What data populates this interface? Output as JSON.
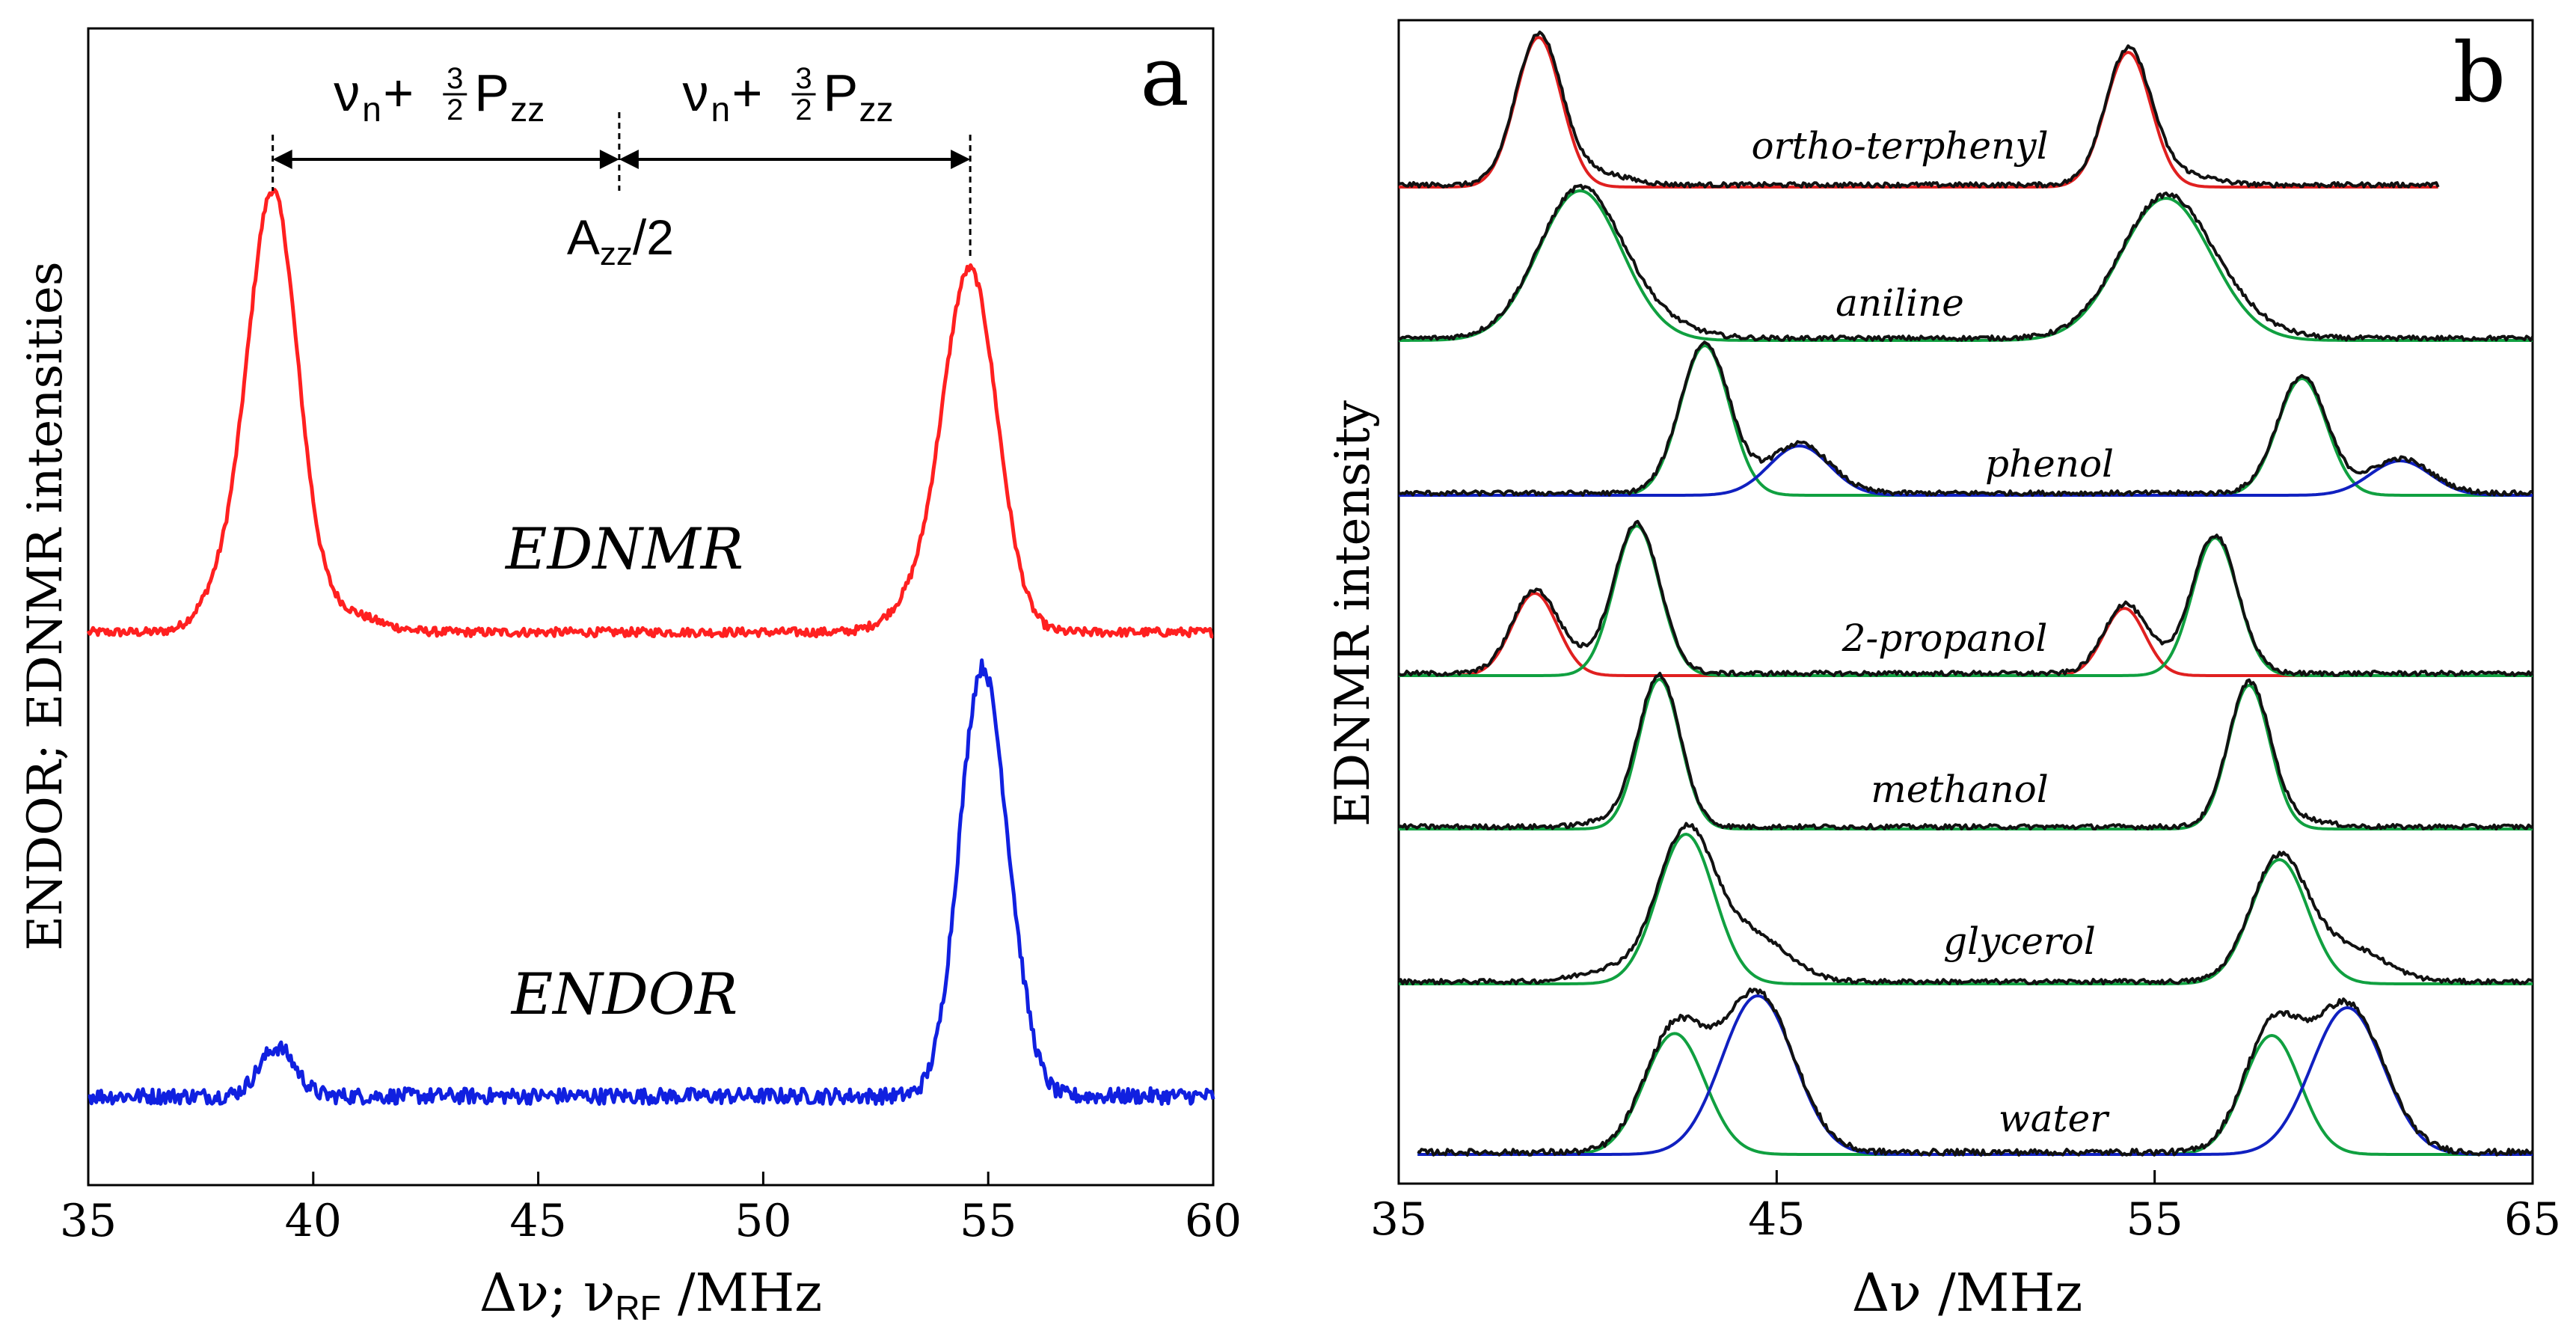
{
  "chart_data": [
    {
      "type": "line",
      "panel_label": "a",
      "xlabel_parts": [
        "Δν; ν",
        "RF",
        " /MHz"
      ],
      "ylabel": "ENDOR; EDNMR intensities",
      "xlim": [
        35,
        60
      ],
      "xticks": [
        "35",
        "40",
        "45",
        "50",
        "55",
        "60"
      ],
      "annotations": {
        "left_arrow_parts": [
          "ν",
          "n",
          "+ ",
          "3",
          "2",
          "P",
          "zz"
        ],
        "right_arrow_parts": [
          "ν",
          "n",
          "+ ",
          "3",
          "2",
          "P",
          "zz"
        ],
        "center_parts": [
          "A",
          "zz",
          "/2"
        ],
        "marker_positions_mhz": [
          39.1,
          46.8,
          54.6
        ]
      },
      "series": [
        {
          "name": "EDNMR",
          "color": "#ff2020",
          "baseline": 0.0,
          "noise": 0.01,
          "peaks": [
            {
              "center": 39.1,
              "height": 1.0,
              "width": 0.55
            },
            {
              "center": 54.6,
              "height": 0.83,
              "width": 0.6
            },
            {
              "center": 38.0,
              "height": 0.09,
              "width": 0.5
            },
            {
              "center": 40.5,
              "height": 0.05,
              "width": 0.8
            },
            {
              "center": 53.4,
              "height": 0.06,
              "width": 0.6
            }
          ]
        },
        {
          "name": "ENDOR",
          "color": "#1020e0",
          "baseline": 0.0,
          "noise": 0.018,
          "peaks": [
            {
              "center": 54.85,
              "height": 0.95,
              "width": 0.5
            },
            {
              "center": 39.2,
              "height": 0.11,
              "width": 0.4
            },
            {
              "center": 55.6,
              "height": 0.12,
              "width": 0.4
            }
          ]
        }
      ]
    },
    {
      "type": "line",
      "panel_label": "b",
      "xlabel": "Δν /MHz",
      "ylabel": "EDNMR intensity",
      "xlim": [
        35,
        65
      ],
      "xticks": [
        "35",
        "45",
        "55",
        "65"
      ],
      "traces": [
        {
          "name": "ortho-terphenyl",
          "range": [
            35,
            62.5
          ],
          "components": [
            {
              "color": "#e02020",
              "peaks": [
                {
                  "center": 38.7,
                  "height": 1.0,
                  "width": 0.6
                },
                {
                  "center": 54.3,
                  "height": 0.9,
                  "width": 0.6
                }
              ]
            }
          ],
          "extra": [
            {
              "center": 40.2,
              "height": 0.08,
              "width": 0.8
            },
            {
              "center": 55.7,
              "height": 0.07,
              "width": 0.8
            }
          ]
        },
        {
          "name": "aniline",
          "range": [
            35,
            65
          ],
          "components": [
            {
              "color": "#10a040",
              "peaks": [
                {
                  "center": 39.8,
                  "height": 1.0,
                  "width": 1.1
                },
                {
                  "center": 55.3,
                  "height": 0.95,
                  "width": 1.2
                }
              ]
            }
          ],
          "extra": [
            {
              "center": 41.8,
              "height": 0.08,
              "width": 1.0
            },
            {
              "center": 57.3,
              "height": 0.07,
              "width": 1.0
            }
          ]
        },
        {
          "name": "phenol",
          "range": [
            35,
            65
          ],
          "components": [
            {
              "color": "#10a040",
              "peaks": [
                {
                  "center": 43.1,
                  "height": 1.0,
                  "width": 0.65
                },
                {
                  "center": 58.9,
                  "height": 0.78,
                  "width": 0.65
                }
              ]
            },
            {
              "color": "#1020c0",
              "peaks": [
                {
                  "center": 45.6,
                  "height": 0.33,
                  "width": 0.8
                },
                {
                  "center": 61.5,
                  "height": 0.23,
                  "width": 0.8
                }
              ]
            }
          ],
          "extra": []
        },
        {
          "name": "2-propanol",
          "range": [
            35,
            65
          ],
          "components": [
            {
              "color": "#e02020",
              "peaks": [
                {
                  "center": 38.6,
                  "height": 0.55,
                  "width": 0.6
                },
                {
                  "center": 54.2,
                  "height": 0.45,
                  "width": 0.55
                }
              ]
            },
            {
              "color": "#10a040",
              "peaks": [
                {
                  "center": 41.3,
                  "height": 1.0,
                  "width": 0.6
                },
                {
                  "center": 56.6,
                  "height": 0.92,
                  "width": 0.6
                }
              ]
            }
          ],
          "extra": [
            {
              "center": 39.8,
              "height": 0.07,
              "width": 0.6
            },
            {
              "center": 55.2,
              "height": 0.06,
              "width": 0.6
            }
          ]
        },
        {
          "name": "methanol",
          "range": [
            35,
            65
          ],
          "components": [
            {
              "color": "#10a040",
              "peaks": [
                {
                  "center": 41.9,
                  "height": 1.0,
                  "width": 0.55
                },
                {
                  "center": 57.5,
                  "height": 0.96,
                  "width": 0.55
                }
              ]
            }
          ],
          "extra": [
            {
              "center": 40.8,
              "height": 0.05,
              "width": 0.7
            },
            {
              "center": 58.8,
              "height": 0.05,
              "width": 0.7
            }
          ]
        },
        {
          "name": "glycerol",
          "range": [
            35,
            65
          ],
          "components": [
            {
              "color": "#10a040",
              "peaks": [
                {
                  "center": 42.6,
                  "height": 1.0,
                  "width": 0.75
                },
                {
                  "center": 58.3,
                  "height": 0.83,
                  "width": 0.75
                }
              ]
            }
          ],
          "extra": [
            {
              "center": 44.4,
              "height": 0.3,
              "width": 0.9
            },
            {
              "center": 60.2,
              "height": 0.22,
              "width": 0.9
            },
            {
              "center": 40.6,
              "height": 0.08,
              "width": 0.8
            }
          ]
        },
        {
          "name": "water",
          "range": [
            35.5,
            65
          ],
          "components": [
            {
              "color": "#10a040",
              "peaks": [
                {
                  "center": 42.3,
                  "height": 0.61,
                  "width": 0.8
                },
                {
                  "center": 58.1,
                  "height": 0.6,
                  "width": 0.75
                }
              ]
            },
            {
              "color": "#1020c0",
              "peaks": [
                {
                  "center": 44.5,
                  "height": 0.8,
                  "width": 0.95
                },
                {
                  "center": 60.1,
                  "height": 0.74,
                  "width": 0.95
                }
              ]
            }
          ],
          "extra": []
        }
      ]
    }
  ]
}
